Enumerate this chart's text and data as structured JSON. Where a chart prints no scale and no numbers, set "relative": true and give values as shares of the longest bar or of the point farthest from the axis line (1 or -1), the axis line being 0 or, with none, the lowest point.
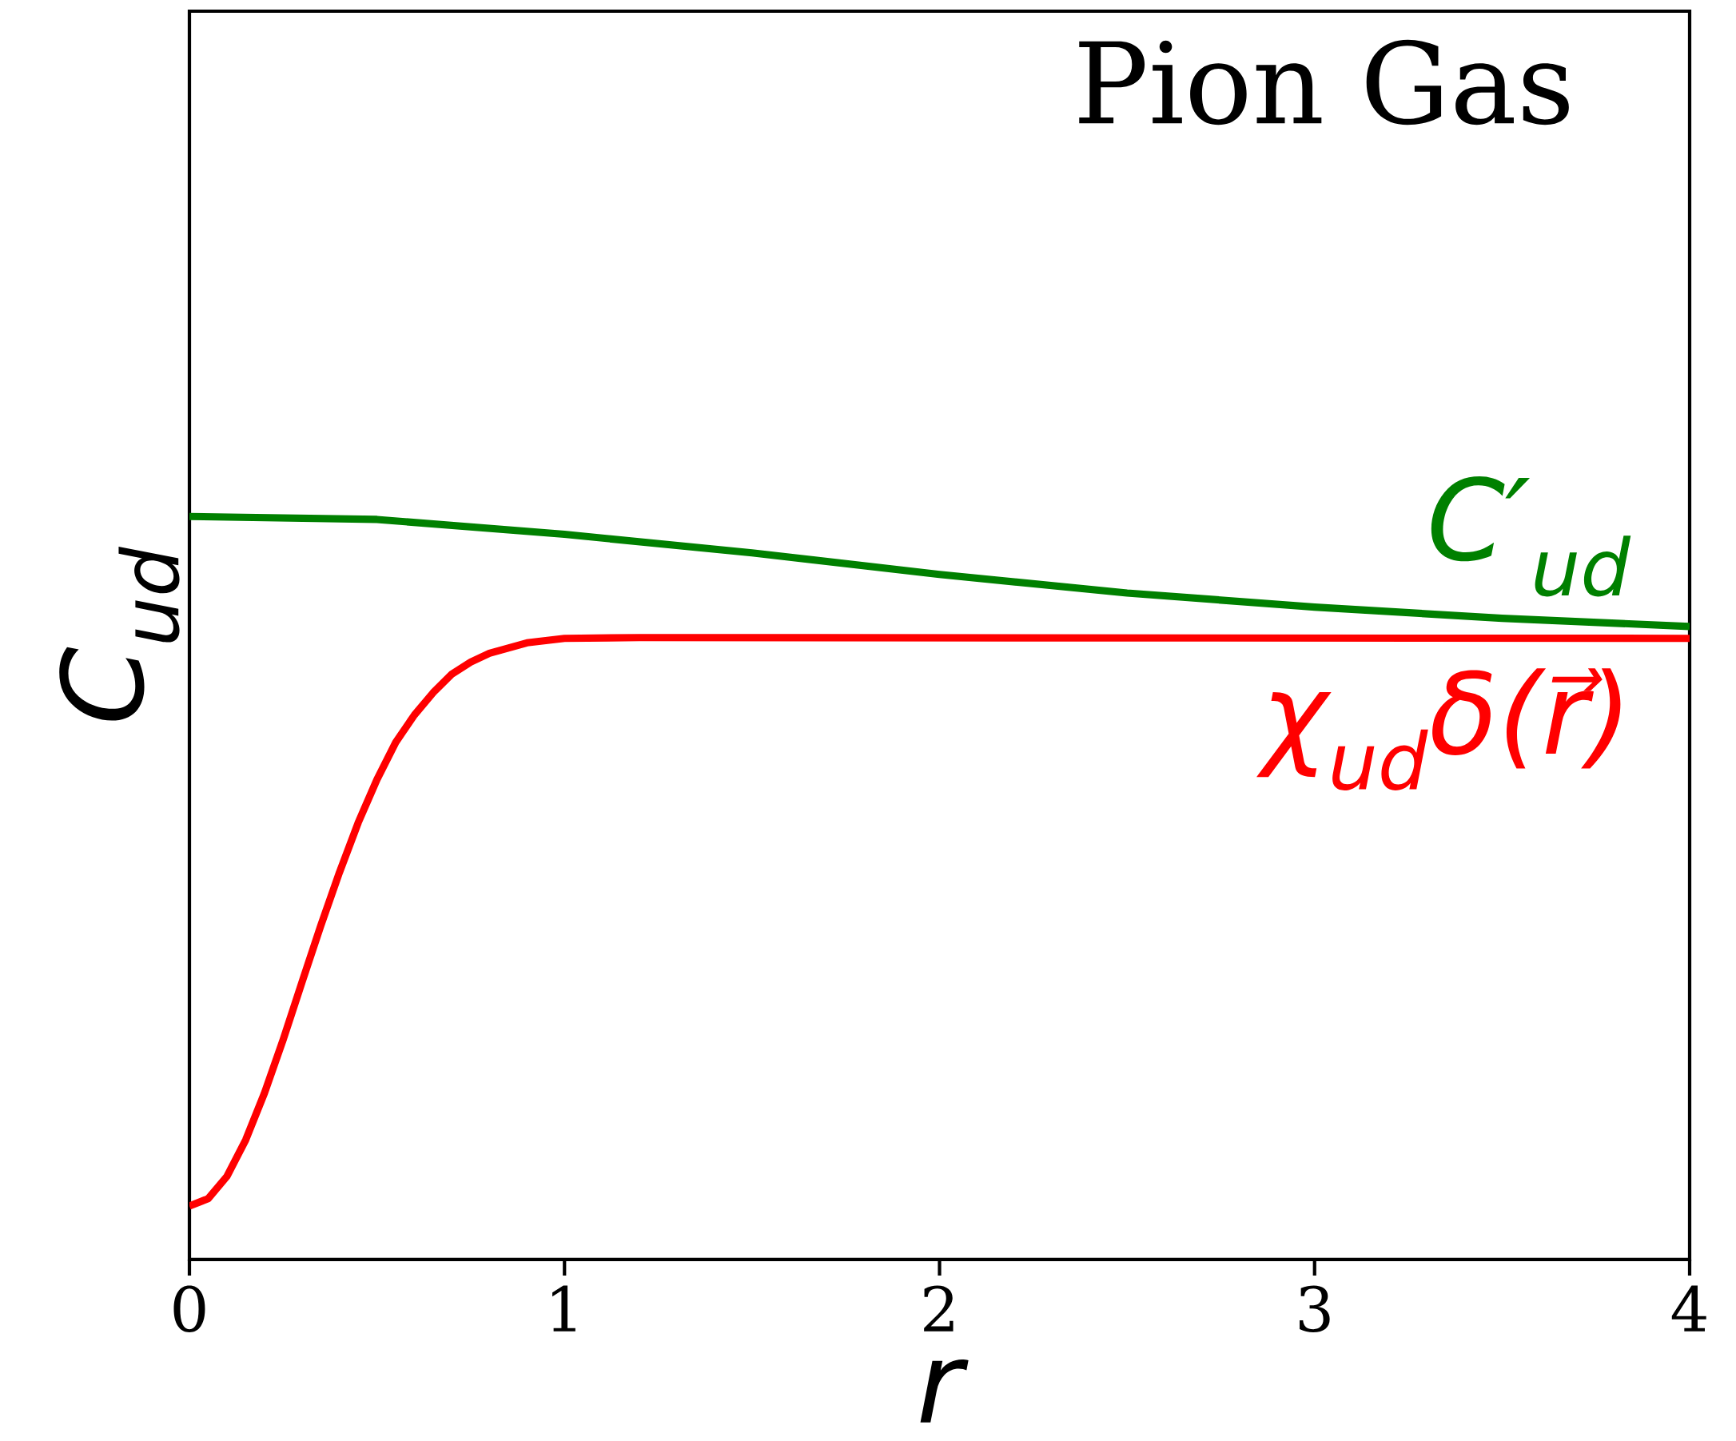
{
  "chart_data": {
    "type": "line",
    "title": "Pion Gas",
    "xlabel": "r",
    "ylabel": "C$_{ud}$",
    "relative": true,
    "tick_labels": "x",
    "xlim": [
      0,
      4
    ],
    "xticks": [
      0,
      1,
      2,
      3,
      4
    ],
    "series": [
      {
        "name": "C′$_{ud}$",
        "color": "#008000",
        "x": [
          0,
          0.5,
          1.0,
          1.5,
          2.0,
          2.5,
          3.0,
          3.5,
          4.0
        ],
        "values": [
          1.0,
          0.996,
          0.976,
          0.951,
          0.922,
          0.897,
          0.878,
          0.863,
          0.852
        ]
      },
      {
        "name": "χ$_{ud}$δ(r⃗)",
        "color": "#ff0000",
        "x": [
          0,
          0.05,
          0.1,
          0.15,
          0.2,
          0.25,
          0.3,
          0.35,
          0.4,
          0.45,
          0.5,
          0.55,
          0.6,
          0.65,
          0.7,
          0.75,
          0.8,
          0.9,
          1.0,
          1.2,
          4.0
        ],
        "values": [
          0.072,
          0.082,
          0.112,
          0.161,
          0.224,
          0.296,
          0.373,
          0.449,
          0.521,
          0.588,
          0.646,
          0.696,
          0.733,
          0.763,
          0.788,
          0.804,
          0.816,
          0.83,
          0.836,
          0.837,
          0.836
        ]
      }
    ]
  }
}
